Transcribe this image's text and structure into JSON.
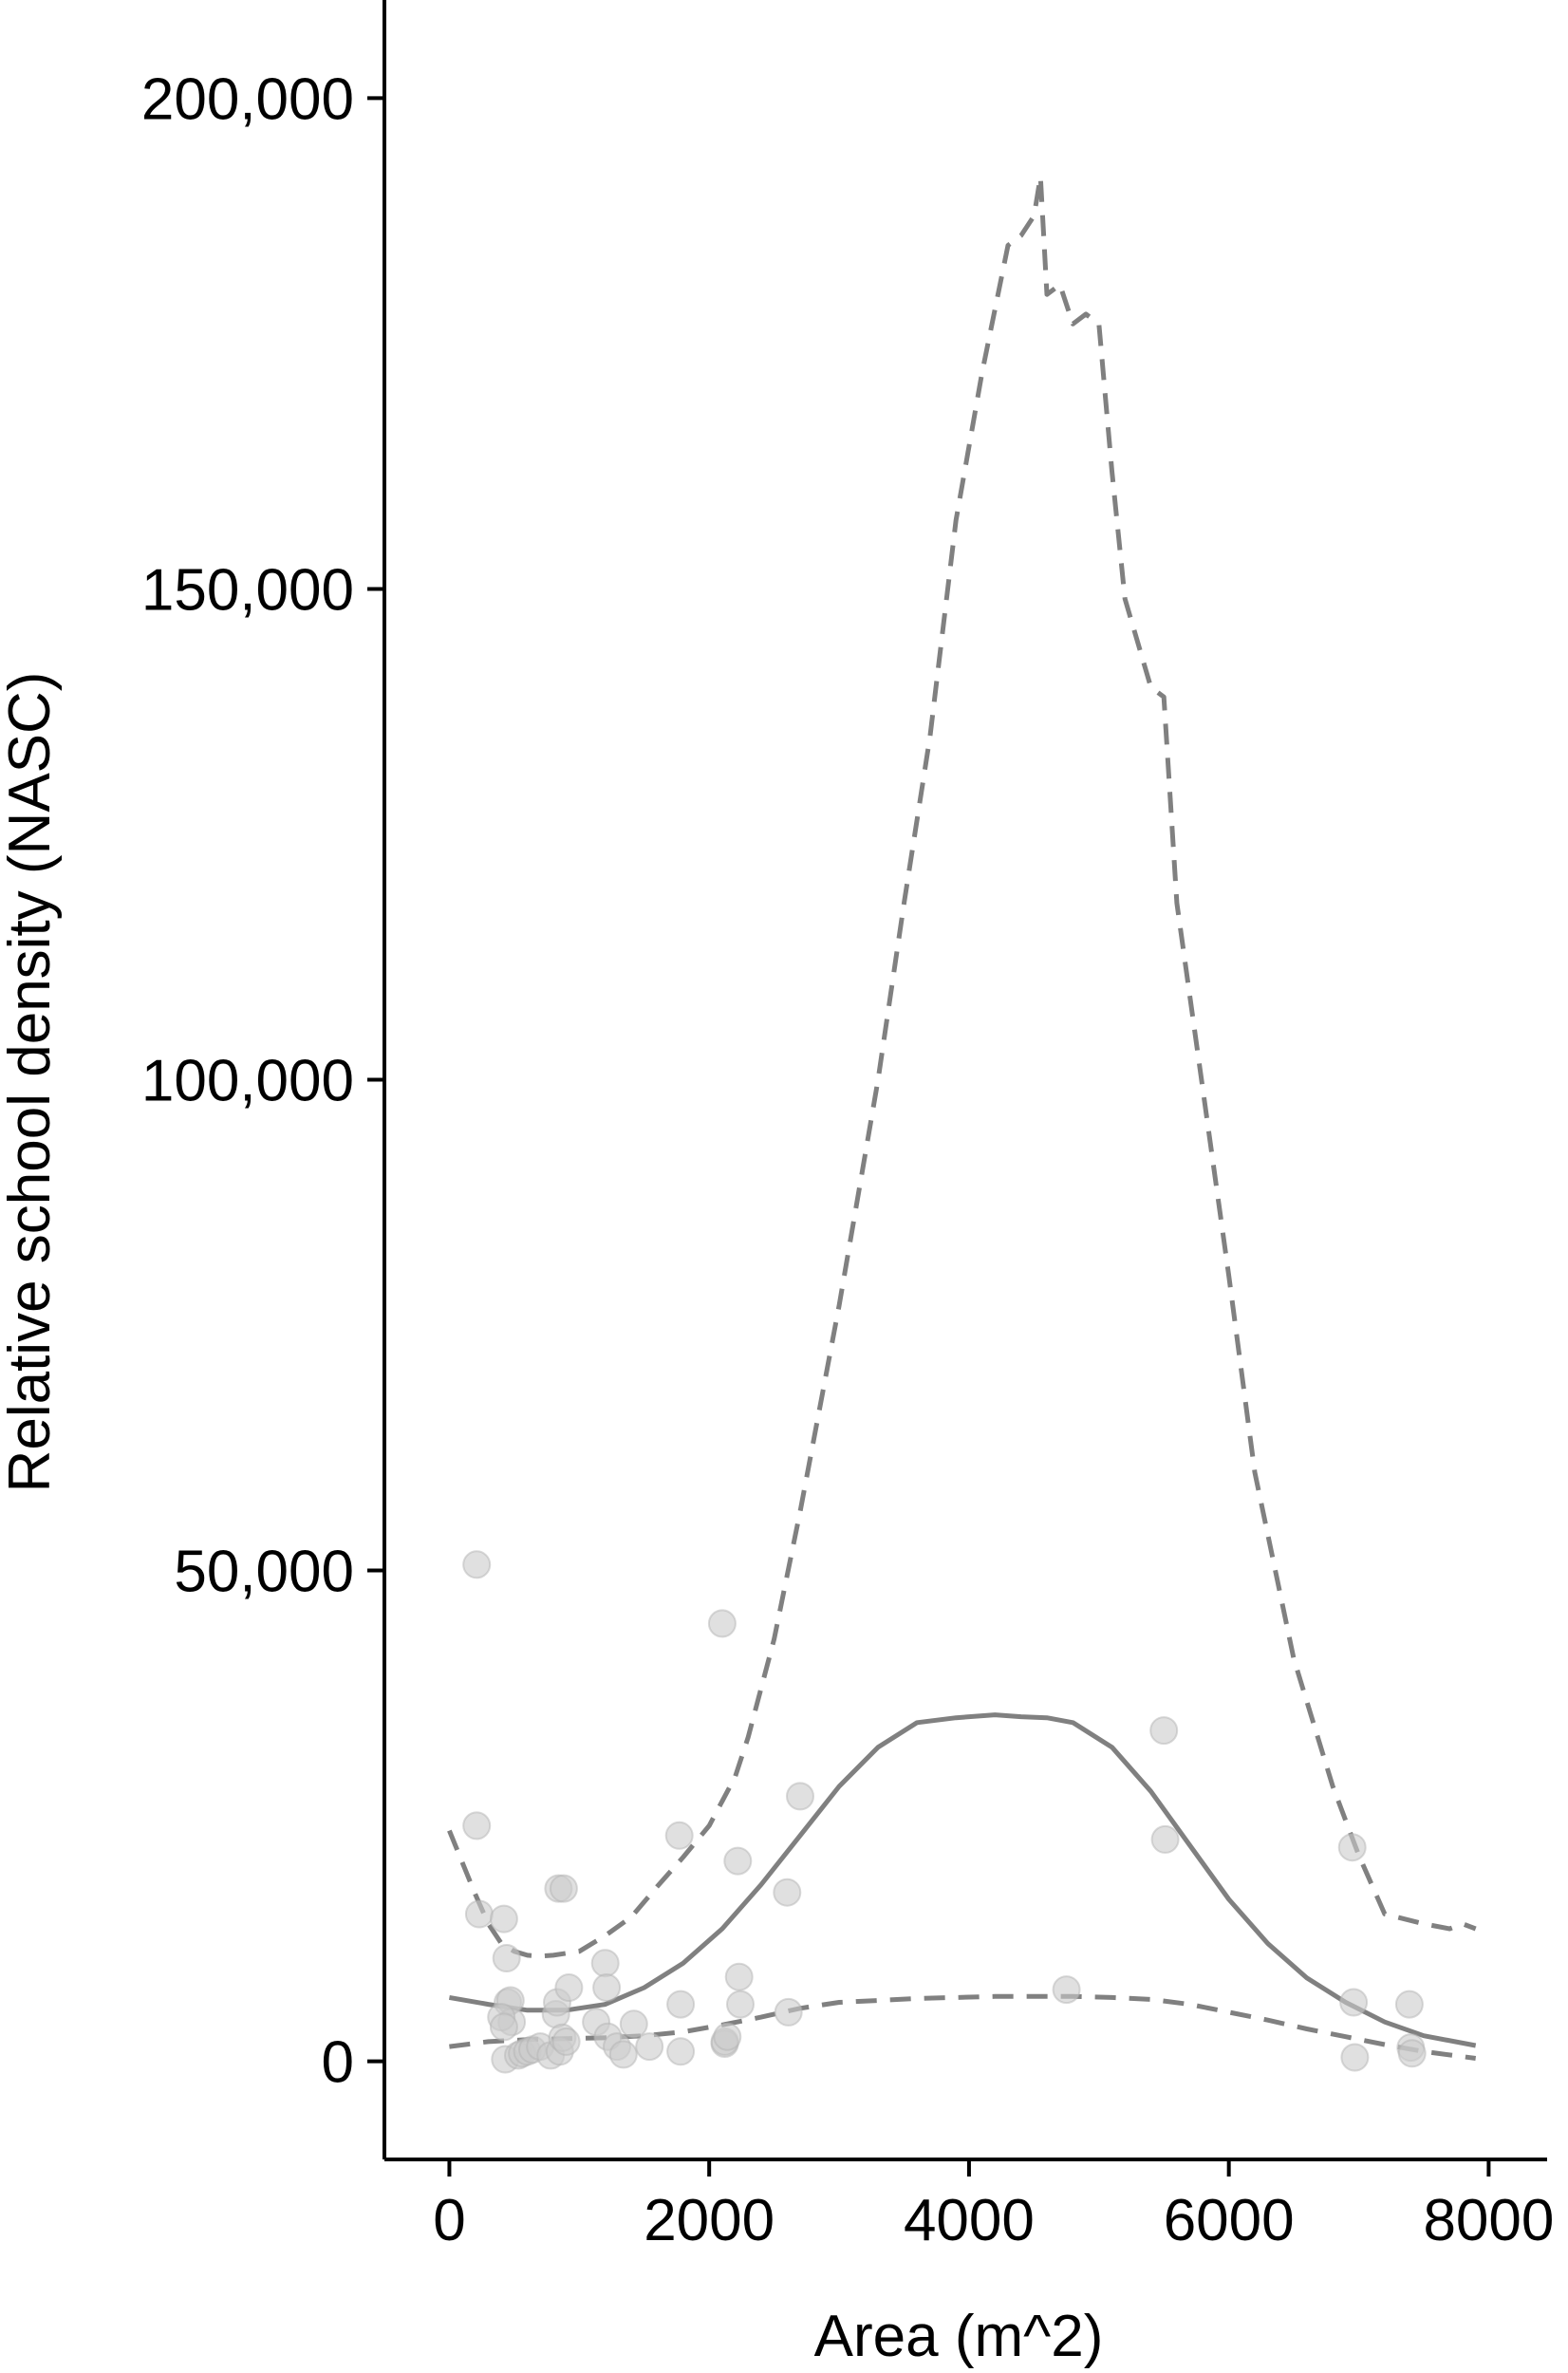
{
  "chart_data": {
    "type": "scatter",
    "title": "",
    "xlabel": "Area (m^2)",
    "ylabel": "Relative school density (NASC)",
    "xlim": [
      -500,
      8450
    ],
    "ylim": [
      -10000,
      210000
    ],
    "xticks": [
      0,
      2000,
      4000,
      6000,
      8000
    ],
    "xtick_labels": [
      "0",
      "2000",
      "4000",
      "6000",
      "8000"
    ],
    "yticks": [
      0,
      50000,
      100000,
      150000,
      200000
    ],
    "ytick_labels": [
      "0",
      "50,000",
      "100,000",
      "150,000",
      "200,000"
    ],
    "grid": false,
    "legend": "none",
    "colors": {
      "points": "#cccccc",
      "point_alpha": 0.6,
      "lines": "#808080",
      "axis": "#000000"
    },
    "points": {
      "x": [
        210,
        210,
        230,
        420,
        440,
        450,
        470,
        480,
        400,
        420,
        430,
        530,
        560,
        600,
        640,
        700,
        780,
        820,
        830,
        840,
        850,
        870,
        880,
        900,
        920,
        1130,
        1200,
        1210,
        1220,
        1290,
        1340,
        1420,
        1540,
        1770,
        1780,
        1780,
        2100,
        2120,
        2120,
        2140,
        2220,
        2230,
        2240,
        2600,
        2610,
        2700,
        4750,
        5500,
        5510,
        6950,
        6960,
        6970,
        7390,
        7400,
        7410
      ],
      "y": [
        50600,
        24000,
        15000,
        14500,
        10500,
        6000,
        6200,
        4000,
        4500,
        3500,
        200,
        600,
        800,
        1000,
        1200,
        1500,
        600,
        4800,
        6000,
        17600,
        1000,
        2400,
        17600,
        2000,
        7500,
        4000,
        10000,
        7500,
        2500,
        1500,
        700,
        3800,
        1500,
        23000,
        5800,
        1000,
        44600,
        1800,
        2000,
        2500,
        20400,
        8600,
        5800,
        17200,
        5000,
        27000,
        7300,
        33700,
        22600,
        21800,
        6000,
        400,
        5800,
        1400,
        800
      ]
    },
    "series": [
      {
        "style": "solid",
        "x": [
          0,
          300,
          600,
          900,
          1200,
          1500,
          1800,
          2100,
          2400,
          2700,
          3000,
          3300,
          3600,
          3900,
          4200,
          4400,
          4600,
          4800,
          5100,
          5400,
          5700,
          6000,
          6300,
          6600,
          6900,
          7200,
          7500,
          7900
        ],
        "y": [
          6500,
          5800,
          5200,
          5200,
          5800,
          7500,
          10000,
          13500,
          18000,
          23000,
          28000,
          32000,
          34500,
          35000,
          35300,
          35100,
          35000,
          34500,
          32000,
          27500,
          22000,
          16500,
          12000,
          8500,
          6000,
          4000,
          2600,
          1600
        ]
      },
      {
        "style": "dashed",
        "x": [
          0,
          200,
          300,
          400,
          500,
          600,
          700,
          800,
          900,
          1000,
          1200,
          1400,
          1600,
          1800,
          2000,
          2200,
          2300,
          2500,
          2700,
          3000,
          3300,
          3500,
          3700,
          3900,
          4100,
          4300,
          4400,
          4500,
          4550,
          4600,
          4700,
          4800,
          4900,
          5000,
          5100,
          5200,
          5400,
          5500,
          5600,
          5800,
          6000,
          6200,
          6500,
          6800,
          7000,
          7200,
          7500,
          7700,
          7800,
          7900
        ],
        "y": [
          23500,
          17000,
          14000,
          12000,
          11200,
          10800,
          10700,
          10800,
          11000,
          11200,
          12800,
          14700,
          17800,
          20800,
          24000,
          29000,
          33000,
          43000,
          56000,
          77000,
          100000,
          118000,
          135000,
          157000,
          172000,
          185000,
          186000,
          188000,
          192000,
          180000,
          181000,
          177000,
          178000,
          177000,
          162000,
          149000,
          140000,
          139000,
          118000,
          99000,
          80000,
          60000,
          41000,
          28000,
          21000,
          15000,
          14000,
          13500,
          14000,
          13500
        ]
      },
      {
        "style": "dashed",
        "x": [
          0,
          300,
          600,
          900,
          1200,
          1500,
          1800,
          2100,
          2400,
          2700,
          3000,
          3300,
          3600,
          3900,
          4200,
          4500,
          4800,
          5100,
          5400,
          5700,
          6000,
          6300,
          6600,
          6900,
          7200,
          7500,
          7900
        ],
        "y": [
          1500,
          2000,
          2200,
          2300,
          2400,
          2600,
          3000,
          3700,
          4500,
          5400,
          6000,
          6200,
          6400,
          6500,
          6600,
          6600,
          6600,
          6500,
          6300,
          5800,
          5000,
          4200,
          3300,
          2500,
          1700,
          1000,
          300
        ]
      }
    ]
  }
}
